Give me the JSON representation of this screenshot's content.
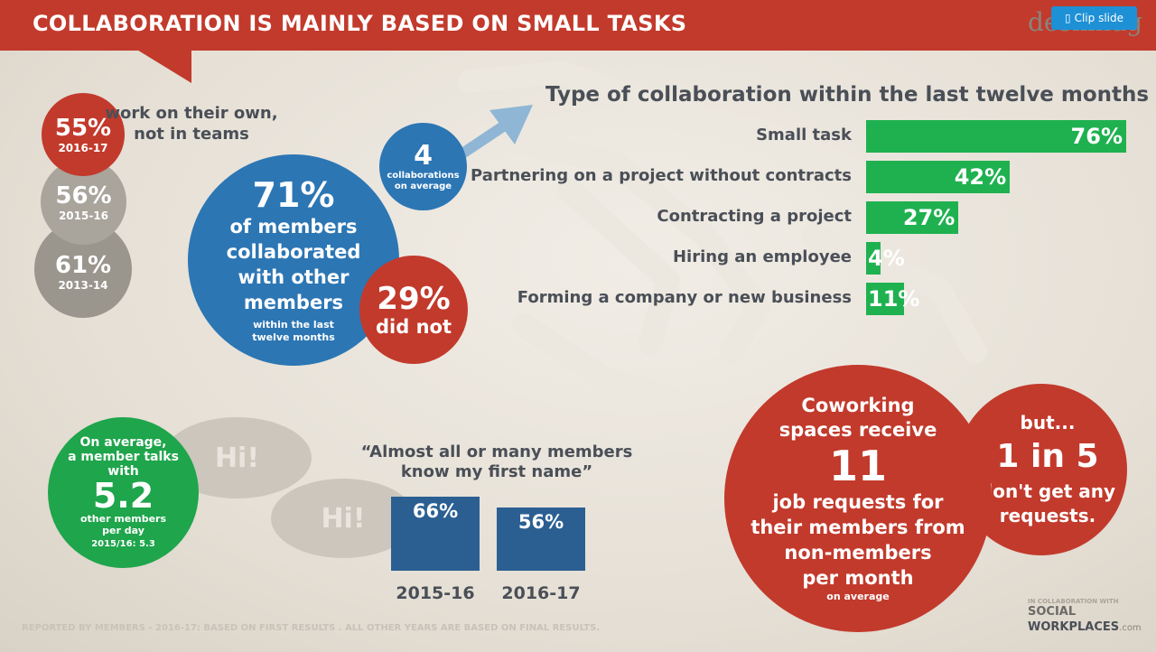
{
  "header": {
    "title": "COLLABORATION IS MAINLY BASED ON SMALL TASKS",
    "logo": "deskmag",
    "clip_slide": "Clip slide"
  },
  "own_work": {
    "text_line1": "work on their own,",
    "text_line2": "not in teams",
    "circles": [
      {
        "value": "55%",
        "year": "2016-17"
      },
      {
        "value": "56%",
        "year": "2015-16"
      },
      {
        "value": "61%",
        "year": "2013-14"
      }
    ]
  },
  "collab": {
    "value": "71%",
    "line1": "of members",
    "line2": "collaborated",
    "line3": "with other",
    "line4": "members",
    "sub1": "within the last",
    "sub2": "twelve months",
    "did_not_value": "29%",
    "did_not_label": "did not",
    "avg_value": "4",
    "avg_line1": "collaborations",
    "avg_line2": "on average"
  },
  "types": {
    "title": "Type of collaboration within the last twelve months",
    "items": [
      {
        "label": "Small task",
        "value": "76%"
      },
      {
        "label": "Partnering on a project without contracts",
        "value": "42%"
      },
      {
        "label": "Contracting a project",
        "value": "27%"
      },
      {
        "label": "Hiring an employee",
        "value": "4%"
      },
      {
        "label": "Forming a company or new business",
        "value": "11%"
      }
    ]
  },
  "talk": {
    "line1": "On average,",
    "line2": "a member talks",
    "line3": "with",
    "value": "5.2",
    "line4": "other members",
    "line5": "per day",
    "prev": "2015/16: 5.3",
    "hi1": "Hi!",
    "hi2": "Hi!"
  },
  "first_name": {
    "quote_line1": "“Almost all or many members",
    "quote_line2": "know my first name”",
    "bars": [
      {
        "value": "66%",
        "year": "2015-16"
      },
      {
        "value": "56%",
        "year": "2016-17"
      }
    ]
  },
  "jobs": {
    "line1": "Coworking",
    "line2": "spaces receive",
    "value": "11",
    "line3": "job requests for",
    "line4": "their members from",
    "line5": "non-members",
    "line6": "per month",
    "line7": "on average",
    "but": "but...",
    "ratio": "1 in 5",
    "ratio_line1": "don't get any",
    "ratio_line2": "requests."
  },
  "footer": {
    "note": "REPORTED BY MEMBERS - 2016-17: BASED ON FIRST RESULTS . ALL OTHER YEARS ARE BASED ON FINAL RESULTS.",
    "partner_line": "IN COLLABORATION WITH",
    "partner_name1": "SOCIAL",
    "partner_name2": "WORKPLACES",
    "partner_suffix": ".com"
  },
  "chart_data": [
    {
      "type": "bar",
      "title": "Type of collaboration within the last twelve months",
      "categories": [
        "Small task",
        "Partnering on a project without contracts",
        "Contracting a project",
        "Hiring an employee",
        "Forming a company or new business"
      ],
      "values": [
        76,
        42,
        27,
        4,
        11
      ],
      "orientation": "horizontal"
    },
    {
      "type": "bar",
      "title": "“Almost all or many members know my first name”",
      "categories": [
        "2015-16",
        "2016-17"
      ],
      "values": [
        66,
        56
      ]
    }
  ]
}
